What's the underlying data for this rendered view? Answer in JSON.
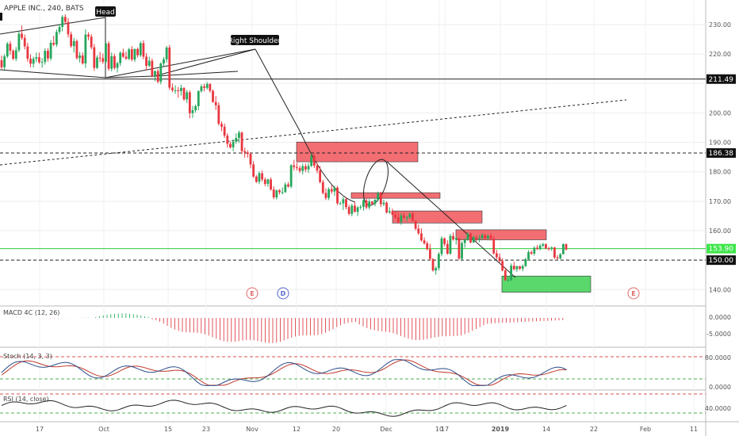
{
  "header": {
    "symbol_title": "APPLE INC., 240, BATS"
  },
  "chart_data": {
    "type": "candlestick",
    "price_axis": {
      "ticks": [
        230.0,
        220.0,
        210.0,
        200.0,
        190.0,
        180.0,
        170.0,
        160.0,
        150.0,
        140.0
      ],
      "ylim": [
        135.5,
        237
      ]
    },
    "x_axis": {
      "labels": [
        "17",
        "Oct",
        "15",
        "23",
        "Nov",
        "12",
        "20",
        "Dec",
        "10",
        "17",
        "2019",
        "14",
        "22",
        "Feb",
        "11"
      ]
    },
    "candles_ohlc": [
      [
        217.9,
        219.5,
        214.9,
        215.5
      ],
      [
        215.5,
        220,
        214.6,
        219.2
      ],
      [
        219.2,
        224.1,
        218.6,
        223.5
      ],
      [
        223.5,
        224.4,
        219.8,
        221.1
      ],
      [
        221.1,
        221.6,
        217.9,
        218.4
      ],
      [
        218.4,
        222.4,
        217.6,
        221.3
      ],
      [
        221.3,
        227.6,
        220.6,
        226.9
      ],
      [
        226.9,
        229.7,
        224.8,
        225.5
      ],
      [
        225.5,
        226.6,
        221.6,
        222.6
      ],
      [
        222.6,
        223.8,
        217.3,
        218.4
      ],
      [
        218.4,
        219.9,
        215.5,
        216.7
      ],
      [
        216.7,
        219.1,
        215.4,
        218.4
      ],
      [
        218.4,
        220.5,
        217.2,
        218.9
      ],
      [
        218.9,
        220.5,
        216.7,
        217.2
      ],
      [
        217.2,
        218.6,
        215.4,
        217.3
      ],
      [
        217.3,
        222,
        216.4,
        221.1
      ],
      [
        221.1,
        222,
        217.4,
        218.5
      ],
      [
        218.5,
        224.7,
        217.8,
        223.8
      ],
      [
        223.8,
        226.2,
        222.7,
        223.2
      ],
      [
        223.2,
        228.3,
        222.4,
        227.5
      ],
      [
        227.5,
        230.2,
        226.7,
        229.2
      ],
      [
        229.2,
        233.2,
        227.7,
        232.6
      ],
      [
        232.6,
        233.5,
        230.1,
        230.9
      ],
      [
        230.9,
        232.2,
        225.6,
        226.7
      ],
      [
        226.7,
        227.6,
        222.1,
        222.7
      ],
      [
        222.7,
        225.5,
        220.5,
        224.4
      ],
      [
        224.4,
        225,
        218.1,
        218.6
      ],
      [
        218.6,
        220.7,
        217.1,
        219.5
      ],
      [
        219.5,
        220.5,
        216.4,
        216.8
      ],
      [
        216.8,
        228.4,
        215.3,
        226.6
      ],
      [
        226.6,
        227.4,
        224.7,
        225.9
      ],
      [
        225.9,
        226.8,
        221.6,
        222.3
      ],
      [
        222.3,
        223.4,
        214.3,
        215.3
      ],
      [
        215.3,
        219.5,
        214.9,
        218.8
      ],
      [
        218.8,
        220.7,
        217.2,
        218.6
      ],
      [
        218.6,
        220.2,
        216.7,
        217.4
      ],
      [
        217.4,
        224.2,
        216.7,
        223.6
      ],
      [
        223.6,
        224.3,
        214.3,
        215
      ],
      [
        215,
        220.5,
        214.1,
        219.3
      ],
      [
        219.3,
        220.1,
        214.7,
        215.3
      ],
      [
        215.3,
        217.4,
        213.7,
        216.9
      ],
      [
        216.9,
        220.9,
        215.9,
        220.4
      ],
      [
        220.4,
        221.8,
        218.6,
        219.1
      ],
      [
        219.1,
        220.8,
        218,
        218.4
      ],
      [
        218.4,
        222.1,
        217.9,
        221.6
      ],
      [
        221.6,
        222.7,
        217.5,
        218.1
      ],
      [
        218.1,
        221.9,
        217.3,
        221.7
      ],
      [
        221.7,
        222.2,
        218.8,
        219.6
      ],
      [
        219.6,
        224.3,
        219,
        223.7
      ],
      [
        223.7,
        224.7,
        218.2,
        219.1
      ],
      [
        219.1,
        220.3,
        214.5,
        216
      ],
      [
        216,
        219.1,
        215.5,
        217.7
      ],
      [
        217.7,
        218.5,
        212.1,
        212.5
      ],
      [
        212.5,
        214.4,
        210.8,
        214.2
      ],
      [
        214.2,
        214.9,
        210,
        210.6
      ],
      [
        210.6,
        217.2,
        209.7,
        216.8
      ],
      [
        216.8,
        219,
        215.8,
        218.2
      ],
      [
        218.2,
        222.7,
        217.1,
        222.2
      ],
      [
        222.2,
        223.1,
        207.8,
        208.6
      ],
      [
        208.6,
        210,
        207.1,
        207.7
      ],
      [
        207.7,
        209.4,
        206.5,
        207.7
      ],
      [
        207.7,
        208.8,
        205.2,
        207.4
      ],
      [
        207.4,
        209.6,
        205.9,
        208.5
      ],
      [
        208.5,
        208.7,
        204.1,
        204.6
      ],
      [
        204.6,
        207.8,
        203.4,
        207
      ],
      [
        207,
        207.6,
        198.2,
        199.9
      ],
      [
        199.9,
        202.4,
        198.3,
        200.9
      ],
      [
        200.9,
        202.8,
        200.1,
        202.3
      ],
      [
        202.3,
        207.7,
        200.9,
        207.4
      ],
      [
        207.4,
        209.7,
        206.8,
        209
      ],
      [
        209,
        209.9,
        207.3,
        208.5
      ],
      [
        208.5,
        210.5,
        207.9,
        209.8
      ],
      [
        209.8,
        210.1,
        206.9,
        207.5
      ],
      [
        207.5,
        207.9,
        203.4,
        203.7
      ],
      [
        203.7,
        205.7,
        201,
        202.6
      ],
      [
        202.6,
        203.6,
        195.7,
        196.3
      ],
      [
        196.3,
        197.1,
        193.8,
        195.3
      ],
      [
        195.3,
        196.4,
        191.5,
        192.3
      ],
      [
        192.3,
        193.1,
        188.2,
        189.5
      ],
      [
        189.5,
        190.3,
        187.9,
        188.3
      ],
      [
        188.3,
        191.1,
        187,
        190.2
      ],
      [
        190.2,
        193,
        189.5,
        191.5
      ],
      [
        191.5,
        194,
        189.8,
        193.3
      ],
      [
        193.3,
        193.7,
        186,
        187
      ],
      [
        187,
        188.2,
        184.8,
        186.6
      ],
      [
        186.6,
        187.3,
        184.8,
        186.1
      ],
      [
        186.1,
        186.6,
        181.2,
        182.5
      ],
      [
        182.5,
        183.6,
        177.9,
        178.4
      ],
      [
        178.4,
        178.9,
        176.2,
        176.6
      ],
      [
        176.6,
        180.1,
        175.8,
        179.5
      ],
      [
        179.5,
        180.4,
        176.7,
        177.4
      ],
      [
        177.4,
        178.1,
        175.1,
        175.9
      ],
      [
        175.9,
        177.7,
        174.9,
        177.4
      ],
      [
        177.4,
        178.1,
        173.6,
        174
      ],
      [
        174,
        175.1,
        170.7,
        171.3
      ],
      [
        171.3,
        174,
        170.6,
        173.7
      ],
      [
        173.7,
        174.1,
        172.3,
        173.1
      ],
      [
        173.1,
        174.7,
        172.3,
        173.1
      ],
      [
        173.1,
        176.4,
        172.8,
        175.7
      ],
      [
        175.7,
        176.5,
        174.6,
        175
      ],
      [
        175,
        182.6,
        174.4,
        182.2
      ],
      [
        182.2,
        184.1,
        180.5,
        181.6
      ],
      [
        181.6,
        183.1,
        180.5,
        181.3
      ],
      [
        181.3,
        182.1,
        179.6,
        180.3
      ],
      [
        180.3,
        182.8,
        179.1,
        181.9
      ],
      [
        181.9,
        182.8,
        179.9,
        180.8
      ],
      [
        180.8,
        183,
        179.6,
        182
      ],
      [
        182,
        186.3,
        181.6,
        185.4
      ],
      [
        185.4,
        186.3,
        181.3,
        182.1
      ],
      [
        182.1,
        183,
        179.5,
        180.4
      ],
      [
        180.4,
        182,
        176.1,
        176.5
      ],
      [
        176.5,
        177.3,
        172.3,
        172.8
      ],
      [
        172.8,
        174.4,
        170.4,
        171.1
      ],
      [
        171.1,
        174.7,
        170.4,
        174.1
      ],
      [
        174.1,
        175.4,
        172.5,
        173.3
      ],
      [
        173.3,
        175.2,
        171.8,
        174.6
      ],
      [
        174.6,
        175.2,
        168.7,
        169.3
      ],
      [
        169.3,
        169.8,
        168.8,
        169.3
      ],
      [
        169.3,
        171.5,
        167,
        170.7
      ],
      [
        170.7,
        171.4,
        167.2,
        168
      ],
      [
        168,
        168.8,
        165.2,
        165.7
      ],
      [
        165.7,
        169.2,
        164.9,
        168.5
      ],
      [
        168.5,
        169.8,
        166.2,
        166.4
      ],
      [
        166.4,
        168.4,
        165,
        167.9
      ],
      [
        167.9,
        168.8,
        167.1,
        168.1
      ],
      [
        168.1,
        170.7,
        166.8,
        170.3
      ],
      [
        170.3,
        171,
        167.3,
        167.9
      ],
      [
        167.9,
        170.7,
        167.2,
        169.9
      ],
      [
        169.9,
        170.1,
        168.9,
        169.1
      ],
      [
        169.1,
        170.7,
        168.3,
        170.5
      ],
      [
        170.5,
        173.3,
        170,
        172.7
      ],
      [
        172.7,
        173.2,
        168.1,
        169
      ],
      [
        169,
        170.5,
        168.3,
        169.5
      ],
      [
        169.5,
        170,
        165.8,
        166.2
      ],
      [
        166.2,
        167.9,
        165.7,
        166.6
      ],
      [
        166.6,
        167.5,
        165.1,
        165.4
      ],
      [
        165.4,
        166.7,
        164,
        164.5
      ],
      [
        164.5,
        166.3,
        162.4,
        162.9
      ],
      [
        162.9,
        165.9,
        162,
        165.2
      ],
      [
        165.2,
        166.1,
        163.9,
        164.4
      ],
      [
        164.4,
        165.1,
        163.1,
        164.5
      ],
      [
        164.5,
        166.1,
        164,
        165.8
      ],
      [
        165.8,
        166.3,
        163.2,
        163.4
      ],
      [
        163.4,
        163.4,
        160.1,
        160.7
      ],
      [
        160.7,
        162.1,
        158.5,
        159.1
      ],
      [
        159.1,
        160.8,
        156.3,
        156.7
      ],
      [
        156.7,
        157.7,
        155.3,
        155.7
      ],
      [
        155.7,
        156.4,
        153.3,
        153.7
      ],
      [
        153.7,
        155.5,
        149.9,
        150.4
      ],
      [
        150.4,
        150.6,
        146.1,
        146.5
      ],
      [
        146.5,
        147.9,
        145.1,
        147.3
      ],
      [
        147.3,
        152.7,
        146.5,
        152.1
      ],
      [
        152.1,
        158.1,
        151.3,
        157.4
      ],
      [
        157.4,
        157.7,
        154.7,
        155.5
      ],
      [
        155.5,
        156.8,
        151.8,
        152.2
      ],
      [
        152.2,
        158.9,
        151.8,
        158.2
      ],
      [
        158.2,
        159.4,
        156.6,
        157
      ],
      [
        157,
        158.1,
        155.3,
        157.5
      ],
      [
        157.5,
        157.6,
        150.1,
        150.5
      ],
      [
        150.5,
        156.4,
        150.1,
        155.8
      ],
      [
        155.8,
        157.4,
        154.2,
        156.9
      ],
      [
        156.9,
        159.5,
        156.6,
        159
      ],
      [
        159,
        159.4,
        155.7,
        156
      ],
      [
        156,
        158.4,
        155.8,
        157.8
      ],
      [
        157.8,
        158.4,
        156.4,
        157
      ],
      [
        157,
        158.5,
        156.1,
        157.4
      ],
      [
        157.4,
        159.2,
        156.7,
        158.5
      ],
      [
        158.5,
        158.8,
        156.9,
        157.4
      ],
      [
        157.4,
        158.7,
        156.7,
        158.3
      ],
      [
        158.3,
        159.1,
        156.6,
        157.3
      ],
      [
        157.3,
        158.2,
        151.9,
        152.3
      ],
      [
        152.3,
        153.5,
        150.3,
        151
      ],
      [
        151,
        152.3,
        149.1,
        149.7
      ],
      [
        149.7,
        150.6,
        146.2,
        146.5
      ],
      [
        146.5,
        147.5,
        142.9,
        143.2
      ],
      [
        143.2,
        144.3,
        142.6,
        143.3
      ],
      [
        143.3,
        148.9,
        142.8,
        148.1
      ],
      [
        148.1,
        149.4,
        146.5,
        146.9
      ],
      [
        146.9,
        148.2,
        146,
        147.9
      ],
      [
        147.9,
        148.1,
        146.6,
        147.1
      ],
      [
        147.1,
        148.5,
        146.2,
        148
      ],
      [
        148,
        150.8,
        147.7,
        150.3
      ],
      [
        150.3,
        153.4,
        149.9,
        152.7
      ],
      [
        152.7,
        153.3,
        151.8,
        152.2
      ],
      [
        152.2,
        154.7,
        151.5,
        154.2
      ],
      [
        154.2,
        155.1,
        153.4,
        153.8
      ],
      [
        153.8,
        155.5,
        153.3,
        154.9
      ],
      [
        154.9,
        155.9,
        154.3,
        155.4
      ],
      [
        155.4,
        155.7,
        153.7,
        154
      ],
      [
        154,
        154.5,
        153.2,
        153.9
      ],
      [
        153.9,
        154.7,
        153.1,
        154.3
      ],
      [
        154.3,
        154.5,
        150.4,
        150.9
      ],
      [
        150.9,
        151.7,
        150.2,
        150.6
      ],
      [
        150.6,
        152.4,
        150.2,
        152
      ],
      [
        152,
        155.7,
        151.9,
        155.4
      ],
      [
        155.4,
        155.7,
        153.3,
        153.6
      ]
    ],
    "horizontal_lines": [
      {
        "price": 211.49,
        "label": "211.49",
        "style": "solid",
        "color": "#222222"
      },
      {
        "price": 186.38,
        "label": "186.38",
        "style": "dashed",
        "color": "#222222"
      },
      {
        "price": 150.0,
        "label": "150.00",
        "style": "dashed",
        "color": "#222222"
      },
      {
        "price": 153.9,
        "label": "153.90",
        "style": "solid",
        "color": "#2ecc40"
      }
    ],
    "annotations": [
      {
        "text": "Head"
      },
      {
        "text": "Right Shoulder"
      }
    ],
    "event_badges": [
      "E",
      "D",
      "E"
    ],
    "indicators": [
      {
        "name": "MACD 4C (12, 26)",
        "ticks": [
          "0.0000",
          "-5.0000"
        ]
      },
      {
        "name": "Stoch (14, 3, 3)",
        "ticks": [
          "80.0000",
          "0.0000"
        ]
      },
      {
        "name": "RSI (14, close)",
        "ticks": [
          "40.0000"
        ]
      }
    ],
    "colors": {
      "up": "#26a65b",
      "down": "#e8373f",
      "zone_red": "#f0555a",
      "zone_green": "#3ed152",
      "stoch_k": "#2d4e8a",
      "stoch_d": "#c0392b",
      "macd_pos": "#3cb86b",
      "macd_neg": "#e2545c"
    }
  }
}
